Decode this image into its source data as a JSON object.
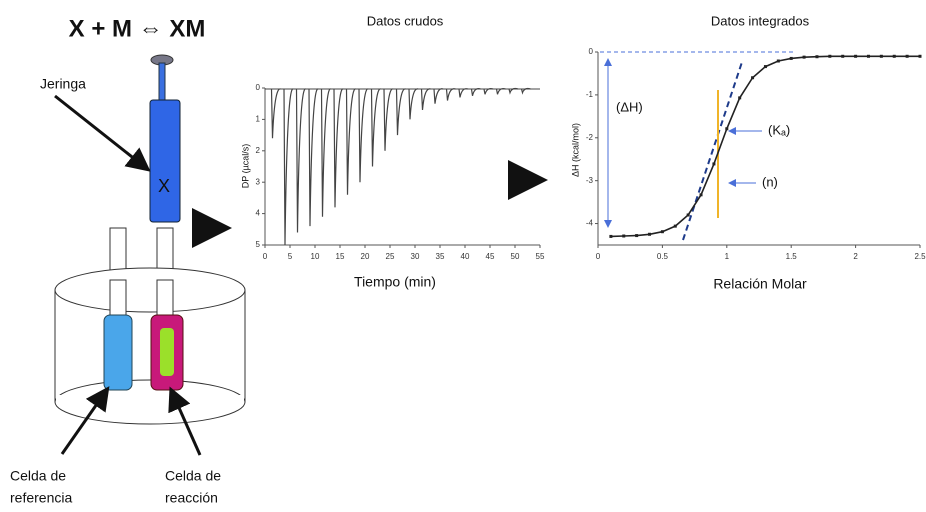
{
  "diagram": {
    "equation": "X + M ⇔ XM",
    "syringe_label": "Jeringa",
    "syringe_content": "X",
    "reference_cell_label": [
      "Celda de",
      "referencia"
    ],
    "reaction_cell_label": [
      "Celda de",
      "reacción"
    ]
  },
  "chart_data": [
    {
      "type": "spikes",
      "title": "Datos crudos",
      "x_label": "Tiempo (min)",
      "y_label": "DP (µcal/s)",
      "xlim": [
        0,
        55
      ],
      "xticks": [
        0,
        5,
        10,
        15,
        20,
        25,
        30,
        35,
        40,
        45,
        50,
        55
      ],
      "ylim": [
        5,
        0
      ],
      "yticks": [
        0,
        1,
        2,
        3,
        4,
        5
      ],
      "color": "#444444",
      "x": [
        1.5,
        4,
        6.5,
        9,
        11.5,
        14,
        16.5,
        19,
        21.5,
        24,
        26.5,
        29,
        31.5,
        34,
        36.5,
        39,
        41.5,
        44,
        46.5,
        49,
        51.5
      ],
      "values": [
        1.6,
        5.0,
        4.6,
        4.4,
        4.1,
        3.8,
        3.4,
        3.0,
        2.5,
        2.0,
        1.5,
        1.0,
        0.7,
        0.5,
        0.4,
        0.3,
        0.25,
        0.2,
        0.2,
        0.15,
        0.15
      ]
    },
    {
      "type": "scatter-line",
      "title": "Datos integrados",
      "x_label": "Relación Molar",
      "y_label": "ΔH (kcal/mol)",
      "xlim": [
        0,
        2.5
      ],
      "xticks": [
        0,
        0.5,
        1,
        1.5,
        2,
        2.5
      ],
      "ylim": [
        -4.5,
        0
      ],
      "yticks": [
        0,
        -1,
        -2,
        -3,
        -4
      ],
      "color": "#222222",
      "x": [
        0.1,
        0.2,
        0.3,
        0.4,
        0.5,
        0.6,
        0.7,
        0.8,
        0.9,
        1.0,
        1.1,
        1.2,
        1.3,
        1.4,
        1.5,
        1.6,
        1.7,
        1.8,
        1.9,
        2.0,
        2.1,
        2.2,
        2.3,
        2.4,
        2.5
      ],
      "values": [
        -4.3,
        -4.29,
        -4.28,
        -4.25,
        -4.19,
        -4.06,
        -3.8,
        -3.33,
        -2.61,
        -1.79,
        -1.07,
        -0.6,
        -0.34,
        -0.21,
        -0.15,
        -0.12,
        -0.11,
        -0.1,
        -0.1,
        -0.1,
        -0.1,
        -0.1,
        -0.1,
        -0.1,
        -0.1
      ],
      "annotations": [
        "(ΔH)",
        "(Kₐ)",
        "(n)"
      ]
    }
  ]
}
